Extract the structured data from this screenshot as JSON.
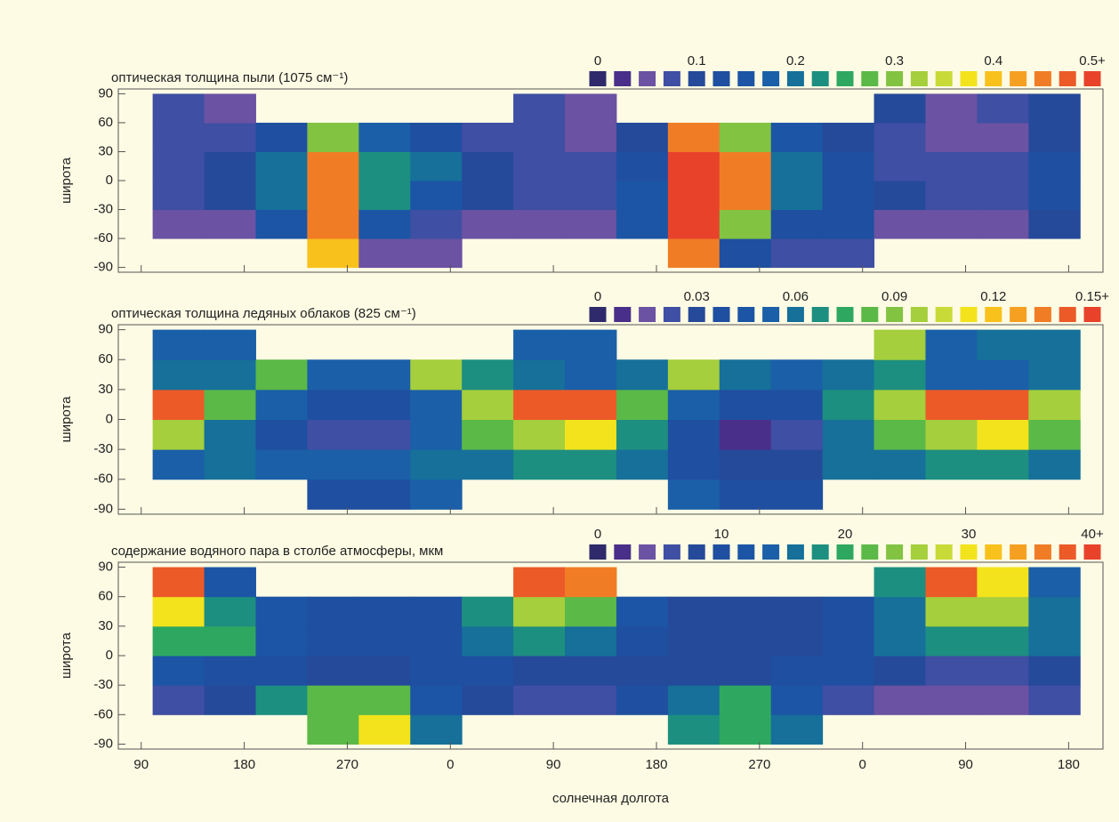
{
  "chart_data": [
    {
      "type": "heatmap",
      "title": "оптическая толщина пыли (1075 см⁻¹)",
      "ylabel": "широта",
      "x_edges": [
        100,
        145,
        190,
        235,
        280,
        325,
        370,
        415,
        460,
        505,
        550,
        595,
        640,
        685,
        730,
        775,
        820,
        865,
        910
      ],
      "y_edges": [
        -90,
        -60,
        -30,
        0,
        30,
        60,
        90
      ],
      "z": [
        [
          null,
          null,
          null,
          0.4,
          0.06,
          0.06,
          null,
          null,
          null,
          null,
          0.45,
          0.12,
          0.08,
          0.08,
          null,
          null,
          null,
          null
        ],
        [
          0.04,
          0.05,
          0.15,
          0.45,
          0.15,
          0.08,
          0.05,
          0.04,
          0.04,
          0.15,
          0.5,
          0.3,
          0.12,
          0.12,
          0.05,
          0.05,
          0.06,
          0.1
        ],
        [
          0.08,
          0.1,
          0.2,
          0.45,
          0.22,
          0.15,
          0.1,
          0.08,
          0.08,
          0.15,
          0.5,
          0.45,
          0.2,
          0.12,
          0.1,
          0.08,
          0.08,
          0.12
        ],
        [
          0.08,
          0.1,
          0.2,
          0.45,
          0.22,
          0.2,
          0.1,
          0.08,
          0.07,
          0.12,
          0.5,
          0.45,
          0.2,
          0.12,
          0.08,
          0.07,
          0.07,
          0.12
        ],
        [
          0.08,
          0.08,
          0.12,
          0.3,
          0.18,
          0.12,
          0.08,
          0.07,
          0.06,
          0.1,
          0.45,
          0.3,
          0.15,
          0.1,
          0.08,
          0.06,
          0.05,
          0.1
        ],
        [
          0.07,
          0.06,
          null,
          null,
          null,
          null,
          null,
          0.08,
          0.06,
          null,
          null,
          null,
          null,
          null,
          0.1,
          0.06,
          0.08,
          0.1
        ]
      ],
      "xlim": [
        70,
        930
      ],
      "ylim": [
        -95,
        95
      ],
      "xticks": [
        90,
        180,
        270,
        360,
        450,
        540,
        630,
        720,
        810,
        900
      ],
      "yticks": [
        -90,
        -60,
        -30,
        0,
        30,
        60,
        90
      ],
      "clim": [
        0,
        0.5
      ],
      "cticks": [
        0,
        0.1,
        0.2,
        0.3,
        0.4,
        {
          "value": 0.5,
          "label": "0.5+"
        }
      ],
      "colors": [
        "#2e2a6b",
        "#4a2f8a",
        "#6b52a3",
        "#3f4fa3",
        "#264a9a",
        "#1f4fa0",
        "#1c55a5",
        "#1a5fa8",
        "#16709a",
        "#1d8f80",
        "#2ea860",
        "#5bb947",
        "#82c342",
        "#a5cf3c",
        "#c8da38",
        "#f3e31c",
        "#f9c11b",
        "#f6a021",
        "#f07d26",
        "#ec5a28",
        "#e8432a"
      ]
    },
    {
      "type": "heatmap",
      "title": "оптическая толщина ледяных облаков (825 см⁻¹)",
      "ylabel": "широта",
      "x_edges": [
        100,
        145,
        190,
        235,
        280,
        325,
        370,
        415,
        460,
        505,
        550,
        595,
        640,
        685,
        730,
        775,
        820,
        865,
        910
      ],
      "y_edges": [
        -90,
        -60,
        -30,
        0,
        30,
        60,
        90
      ],
      "z": [
        [
          null,
          null,
          null,
          0.04,
          0.04,
          0.05,
          null,
          null,
          null,
          null,
          0.05,
          0.04,
          0.04,
          null,
          null,
          null,
          null,
          null
        ],
        [
          0.05,
          0.06,
          0.05,
          0.05,
          0.05,
          0.06,
          0.06,
          0.07,
          0.07,
          0.06,
          0.04,
          0.03,
          0.03,
          0.06,
          0.06,
          0.07,
          0.07,
          0.06
        ],
        [
          0.1,
          0.06,
          0.04,
          0.02,
          0.02,
          0.05,
          0.08,
          0.1,
          0.11,
          0.07,
          0.04,
          0.01,
          0.02,
          0.06,
          0.08,
          0.1,
          0.11,
          0.08
        ],
        [
          0.14,
          0.08,
          0.05,
          0.04,
          0.04,
          0.05,
          0.1,
          0.14,
          0.14,
          0.08,
          0.05,
          0.04,
          0.04,
          0.07,
          0.1,
          0.14,
          0.14,
          0.1
        ],
        [
          0.06,
          0.06,
          0.08,
          0.05,
          0.05,
          0.1,
          0.07,
          0.06,
          0.05,
          0.06,
          0.1,
          0.06,
          0.05,
          0.06,
          0.07,
          0.05,
          0.05,
          0.06
        ],
        [
          0.05,
          0.05,
          null,
          null,
          null,
          null,
          null,
          0.05,
          0.05,
          null,
          null,
          null,
          null,
          null,
          0.1,
          0.05,
          0.06,
          0.06
        ]
      ],
      "xlim": [
        70,
        930
      ],
      "ylim": [
        -95,
        95
      ],
      "xticks": [
        90,
        180,
        270,
        360,
        450,
        540,
        630,
        720,
        810,
        900
      ],
      "yticks": [
        -90,
        -60,
        -30,
        0,
        30,
        60,
        90
      ],
      "clim": [
        0,
        0.15
      ],
      "cticks": [
        0,
        0.03,
        0.06,
        0.09,
        0.12,
        {
          "value": 0.15,
          "label": "0.15+"
        }
      ],
      "colors": [
        "#2e2a6b",
        "#4a2f8a",
        "#6b52a3",
        "#3f4fa3",
        "#264a9a",
        "#1f4fa0",
        "#1c55a5",
        "#1a5fa8",
        "#16709a",
        "#1d8f80",
        "#2ea860",
        "#5bb947",
        "#82c342",
        "#a5cf3c",
        "#c8da38",
        "#f3e31c",
        "#f9c11b",
        "#f6a021",
        "#f07d26",
        "#ec5a28",
        "#e8432a"
      ]
    },
    {
      "type": "heatmap",
      "title": "содержание водяного пара в столбе атмосферы, мкм",
      "ylabel": "широта",
      "xlabel": "солнечная долгота",
      "x_edges": [
        100,
        145,
        190,
        235,
        280,
        325,
        370,
        415,
        460,
        505,
        550,
        595,
        640,
        685,
        730,
        775,
        820,
        865,
        910
      ],
      "y_edges": [
        -90,
        -60,
        -30,
        0,
        30,
        60,
        90
      ],
      "z": [
        [
          null,
          null,
          null,
          22,
          30,
          15,
          null,
          null,
          null,
          null,
          18,
          20,
          15,
          null,
          null,
          null,
          null,
          null
        ],
        [
          5,
          8,
          18,
          22,
          22,
          12,
          8,
          5,
          5,
          10,
          15,
          20,
          12,
          5,
          4,
          4,
          4,
          5
        ],
        [
          12,
          10,
          10,
          8,
          8,
          10,
          10,
          8,
          8,
          8,
          8,
          8,
          10,
          10,
          8,
          6,
          6,
          8
        ],
        [
          20,
          20,
          12,
          10,
          10,
          10,
          15,
          18,
          15,
          10,
          8,
          8,
          8,
          10,
          15,
          18,
          18,
          16
        ],
        [
          30,
          18,
          12,
          10,
          10,
          10,
          18,
          25,
          22,
          12,
          8,
          8,
          8,
          10,
          15,
          25,
          25,
          15
        ],
        [
          38,
          12,
          null,
          null,
          null,
          null,
          null,
          38,
          35,
          null,
          null,
          null,
          null,
          null,
          18,
          38,
          30,
          14
        ]
      ],
      "xlim": [
        70,
        930
      ],
      "ylim": [
        -95,
        95
      ],
      "xticks": [
        90,
        180,
        270,
        {
          "value": 360,
          "label": "0"
        },
        {
          "value": 450,
          "label": "90"
        },
        {
          "value": 540,
          "label": "180"
        },
        {
          "value": 630,
          "label": "270"
        },
        {
          "value": 720,
          "label": "0"
        },
        {
          "value": 810,
          "label": "90"
        },
        {
          "value": 900,
          "label": "180"
        }
      ],
      "yticks": [
        -90,
        -60,
        -30,
        0,
        30,
        60,
        90
      ],
      "clim": [
        0,
        40
      ],
      "cticks": [
        0,
        10,
        20,
        30,
        {
          "value": 40,
          "label": "40+"
        }
      ],
      "colors": [
        "#2e2a6b",
        "#4a2f8a",
        "#6b52a3",
        "#3f4fa3",
        "#264a9a",
        "#1f4fa0",
        "#1c55a5",
        "#1a5fa8",
        "#16709a",
        "#1d8f80",
        "#2ea860",
        "#5bb947",
        "#82c342",
        "#a5cf3c",
        "#c8da38",
        "#f3e31c",
        "#f9c11b",
        "#f6a021",
        "#f07d26",
        "#ec5a28",
        "#e8432a"
      ]
    }
  ]
}
